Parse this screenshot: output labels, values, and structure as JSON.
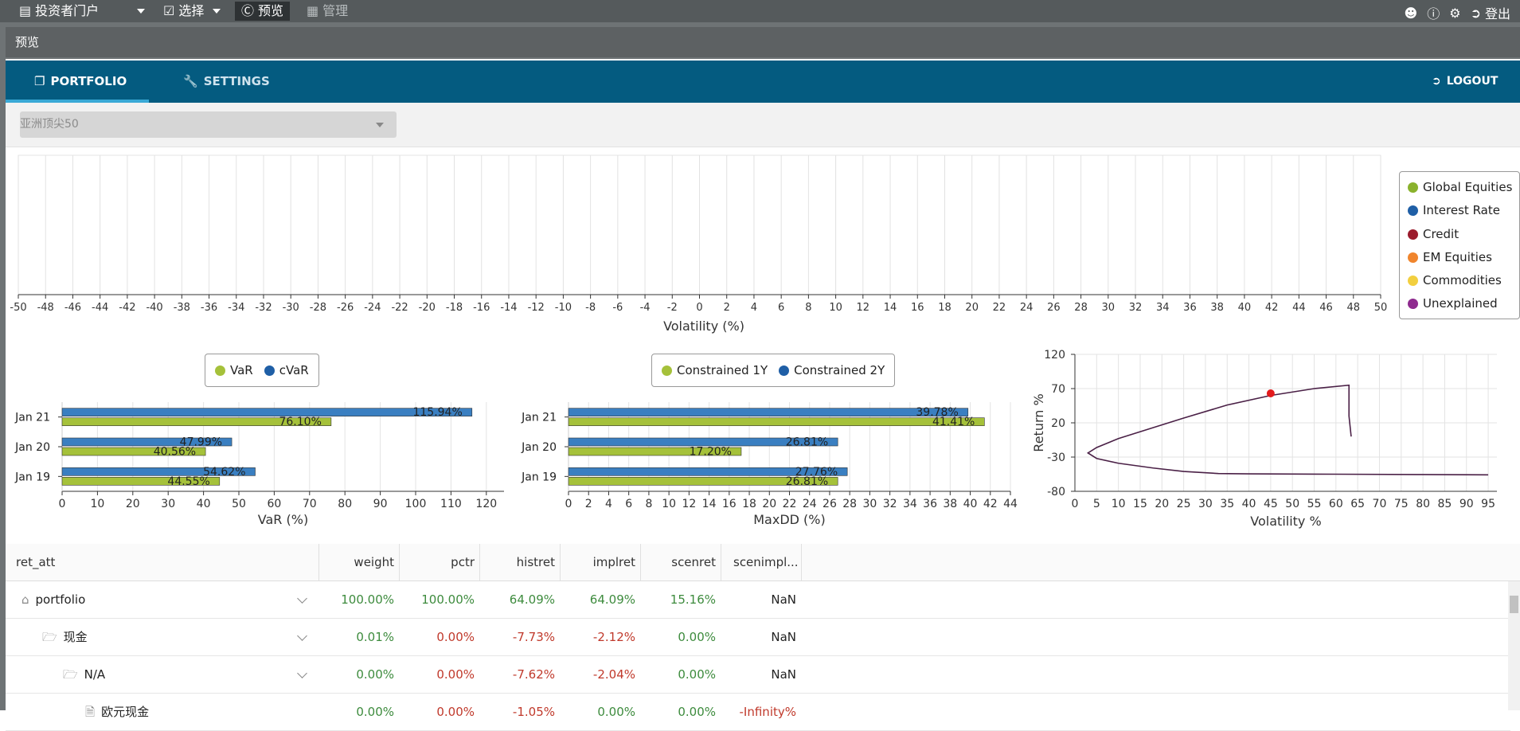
{
  "topbar": {
    "portal_label": "投资者门户",
    "select_label": "选择",
    "preview_label": "预览",
    "admin_label": "管理",
    "logout_label": "登出"
  },
  "panel_title": "预览",
  "nav": {
    "tabs": [
      {
        "label": "PORTFOLIO",
        "active": true
      },
      {
        "label": "SETTINGS",
        "active": false
      }
    ],
    "logout_label": "LOGOUT"
  },
  "portfolio_select": {
    "value": "亚洲顶尖50"
  },
  "volatility_chart": {
    "xlabel": "Volatility (%)",
    "x_ticks": [
      "-50",
      "-48",
      "-46",
      "-44",
      "-42",
      "-40",
      "-38",
      "-36",
      "-34",
      "-32",
      "-30",
      "-28",
      "-26",
      "-24",
      "-22",
      "-20",
      "-18",
      "-16",
      "-14",
      "-12",
      "-10",
      "-8",
      "-6",
      "-4",
      "-2",
      "0",
      "2",
      "4",
      "6",
      "8",
      "10",
      "12",
      "14",
      "16",
      "18",
      "20",
      "22",
      "24",
      "26",
      "28",
      "30",
      "32",
      "34",
      "36",
      "38",
      "40",
      "42",
      "44",
      "46",
      "48",
      "50"
    ]
  },
  "sector_legend": [
    {
      "name": "Global Equities",
      "color": "#8ab22d"
    },
    {
      "name": "Interest Rate",
      "color": "#1f5fa6"
    },
    {
      "name": "Credit",
      "color": "#9b1b2c"
    },
    {
      "name": "EM Equities",
      "color": "#f0852d"
    },
    {
      "name": "Commodities",
      "color": "#f2cf3f"
    },
    {
      "name": "Unexplained",
      "color": "#8e2a8e"
    }
  ],
  "chart_data": [
    {
      "type": "bar",
      "orientation": "horizontal",
      "categories": [
        "Jan 21",
        "Jan 20",
        "Jan 19"
      ],
      "series": [
        {
          "name": "VaR",
          "color": "#a5c13a",
          "values": [
            76.1,
            40.56,
            44.55
          ],
          "labels": [
            "76.10%",
            "40.56%",
            "44.55%"
          ]
        },
        {
          "name": "cVaR",
          "color": "#3a7fc1",
          "values": [
            115.94,
            47.99,
            54.62
          ],
          "labels": [
            "115.94%",
            "47.99%",
            "54.62%"
          ]
        }
      ],
      "xlabel": "VaR (%)",
      "xlim": [
        0,
        125
      ],
      "x_ticks": [
        "0",
        "10",
        "20",
        "30",
        "40",
        "50",
        "60",
        "70",
        "80",
        "90",
        "100",
        "110",
        "120"
      ],
      "legend": "top"
    },
    {
      "type": "bar",
      "orientation": "horizontal",
      "categories": [
        "Jan 21",
        "Jan 20",
        "Jan 19"
      ],
      "series": [
        {
          "name": "Constrained 1Y",
          "color": "#a5c13a",
          "values": [
            41.41,
            17.2,
            26.81
          ],
          "labels": [
            "41.41%",
            "17.20%",
            "26.81%"
          ]
        },
        {
          "name": "Constrained 2Y",
          "color": "#3a7fc1",
          "values": [
            39.78,
            26.81,
            27.76
          ],
          "labels": [
            "39.78%",
            "26.81%",
            "27.76%"
          ]
        }
      ],
      "xlabel": "MaxDD (%)",
      "xlim": [
        0,
        44
      ],
      "x_ticks": [
        "0",
        "2",
        "4",
        "6",
        "8",
        "10",
        "12",
        "14",
        "16",
        "18",
        "20",
        "22",
        "24",
        "26",
        "28",
        "30",
        "32",
        "34",
        "36",
        "38",
        "40",
        "42",
        "44"
      ],
      "legend": "top"
    },
    {
      "type": "line",
      "xlabel": "Volatility %",
      "ylabel": "Return %",
      "xlim": [
        0,
        97
      ],
      "ylim": [
        -80,
        120
      ],
      "x_ticks": [
        "0",
        "5",
        "10",
        "15",
        "20",
        "25",
        "30",
        "35",
        "40",
        "45",
        "50",
        "55",
        "60",
        "65",
        "70",
        "75",
        "80",
        "85",
        "90",
        "95"
      ],
      "y_ticks": [
        "120",
        "70",
        "20",
        "-30",
        "-80"
      ],
      "series": [
        {
          "color": "#4a2046",
          "x": [
            95,
            80,
            60,
            40,
            33,
            25,
            18,
            10,
            5,
            3,
            5,
            10,
            18,
            25,
            35,
            45,
            55,
            63,
            63,
            63.5
          ],
          "y": [
            -56,
            -55.5,
            -55,
            -54.5,
            -54,
            -51,
            -46,
            -39,
            -32,
            -24,
            -16,
            -3,
            13,
            27,
            46,
            60,
            70,
            75,
            30,
            0
          ]
        },
        {
          "color": "#e31a1c",
          "type": "scatter",
          "x": [
            45
          ],
          "y": [
            63
          ]
        }
      ]
    }
  ],
  "table": {
    "columns": [
      "ret_att",
      "weight",
      "pctr",
      "histret",
      "implret",
      "scenret",
      "scenimpl..."
    ],
    "rows": [
      {
        "name": "portfolio",
        "icon": "home-icon",
        "weight": "100.00%",
        "pctr": "100.00%",
        "histret": "64.09%",
        "implret": "64.09%",
        "scenret": "15.16%",
        "scenimpl": "NaN"
      },
      {
        "name": "现金",
        "icon": "folder-icon",
        "weight": "0.01%",
        "pctr": "0.00%",
        "histret": "-7.73%",
        "implret": "-2.12%",
        "scenret": "0.00%",
        "scenimpl": "NaN"
      },
      {
        "name": "N/A",
        "icon": "folder-icon",
        "weight": "0.00%",
        "pctr": "0.00%",
        "histret": "-7.62%",
        "implret": "-2.04%",
        "scenret": "0.00%",
        "scenimpl": "NaN"
      },
      {
        "name": "欧元现金",
        "icon": "file-icon",
        "weight": "0.00%",
        "pctr": "0.00%",
        "histret": "-1.05%",
        "implret": "0.00%",
        "scenret": "0.00%",
        "scenimpl": "-Infinity%"
      }
    ]
  }
}
